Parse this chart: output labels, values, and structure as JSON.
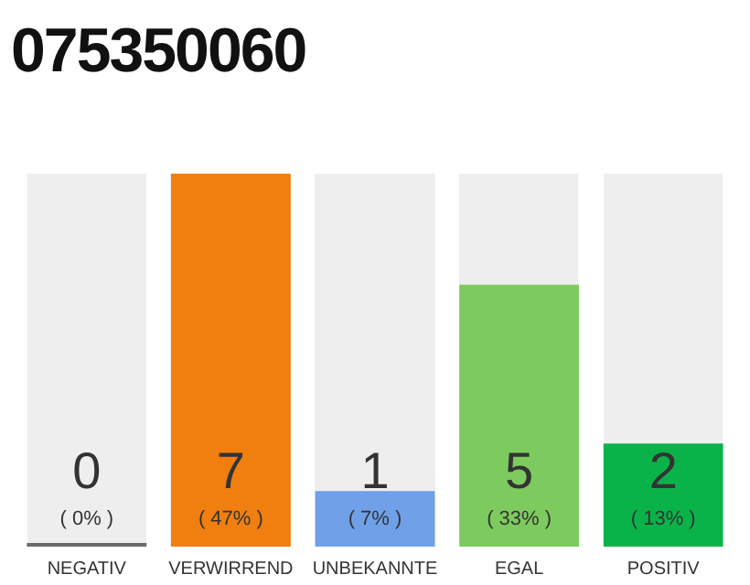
{
  "chart_data": {
    "type": "bar",
    "title": "075350060",
    "categories": [
      "NEGATIV",
      "VERWIRREND",
      "UNBEKANNTE",
      "EGAL",
      "POSITIV"
    ],
    "values": [
      0,
      47,
      7,
      33,
      13
    ],
    "annotations": [
      "0",
      "7",
      "1",
      "5",
      "2"
    ],
    "colors": [
      "#6b6b6b",
      "#f07f0f",
      "#6fa0e8",
      "#7dcb5f",
      "#0ab34a"
    ],
    "value_labels": [
      "( 0% )",
      "( 47% )",
      "( 7% )",
      "( 33% )",
      "( 13% )"
    ],
    "tick_labels": "x",
    "grid": false,
    "legend": false
  }
}
